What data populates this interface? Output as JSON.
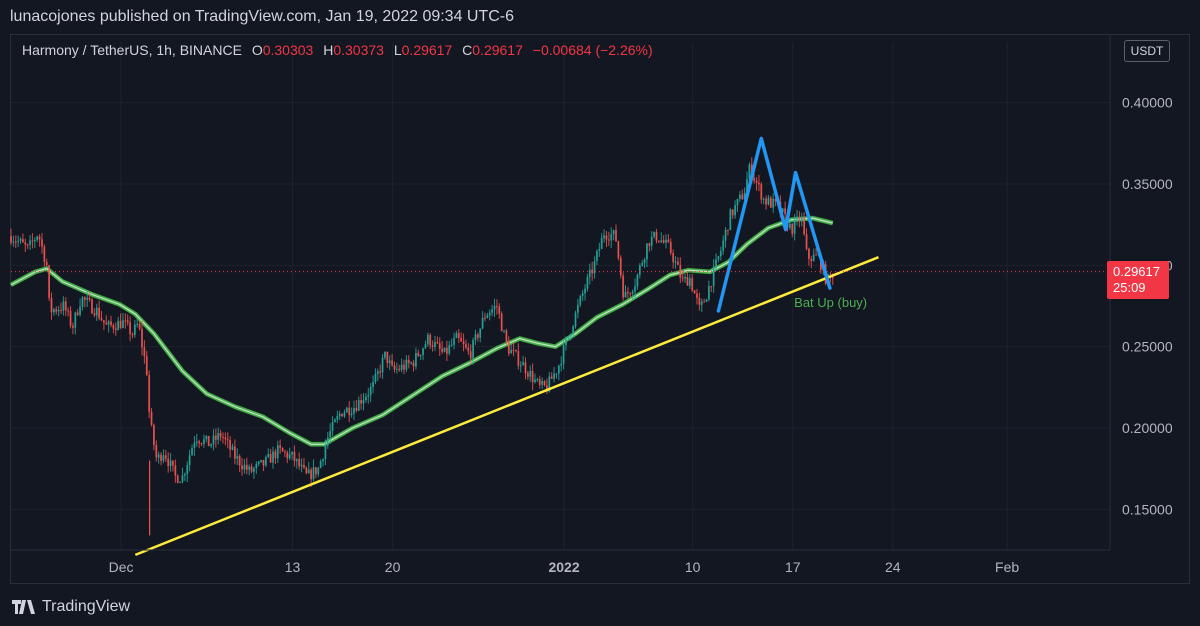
{
  "header": {
    "published": "lunacojones published on TradingView.com, Jan 19, 2022 09:34 UTC-6"
  },
  "legend": {
    "symbol": "Harmony / TetherUS, 1h, BINANCE",
    "o_label": "O",
    "o": "0.30303",
    "h_label": "H",
    "h": "0.30373",
    "l_label": "L",
    "l": "0.29617",
    "c_label": "C",
    "c": "0.29617",
    "change": "−0.00684 (−2.26%)"
  },
  "currency": "USDT",
  "price_tag": {
    "price": "0.29617",
    "countdown": "25:09"
  },
  "footer": {
    "brand": "TradingView"
  },
  "colors": {
    "background": "#131722",
    "bull": "#26a69a",
    "bear": "#ef5350",
    "ma": "#4caf50",
    "trendline": "#ffeb3b",
    "pattern": "#2196f3",
    "last_price": "#f23645"
  },
  "chart_data": {
    "type": "candlestick",
    "interval": "1h",
    "ylim": [
      0.125,
      0.425
    ],
    "yticks": [
      "0.15000",
      "0.20000",
      "0.25000",
      "0.30000",
      "0.35000",
      "0.40000"
    ],
    "xticks": [
      {
        "label": "Dec",
        "t": 1
      },
      {
        "label": "13",
        "t": 13
      },
      {
        "label": "20",
        "t": 20
      },
      {
        "label": "2022",
        "t": 32
      },
      {
        "label": "10",
        "t": 41
      },
      {
        "label": "17",
        "t": 48
      },
      {
        "label": "24",
        "t": 55
      },
      {
        "label": "Feb",
        "t": 63
      }
    ],
    "x_domain": [
      -6.7,
      70.2
    ],
    "price_path": [
      [
        -6.7,
        0.318
      ],
      [
        -5.5,
        0.31
      ],
      [
        -4.8,
        0.32
      ],
      [
        -4.2,
        0.3
      ],
      [
        -4.0,
        0.272
      ],
      [
        -3.0,
        0.275
      ],
      [
        -2.4,
        0.262
      ],
      [
        -1.8,
        0.28
      ],
      [
        -0.7,
        0.272
      ],
      [
        0.0,
        0.262
      ],
      [
        1.1,
        0.265
      ],
      [
        1.8,
        0.258
      ],
      [
        2.2,
        0.264
      ],
      [
        2.8,
        0.235
      ],
      [
        3.0,
        0.205
      ],
      [
        3.5,
        0.18
      ],
      [
        4.0,
        0.186
      ],
      [
        4.8,
        0.17
      ],
      [
        5.3,
        0.17
      ],
      [
        6.2,
        0.195
      ],
      [
        7.2,
        0.19
      ],
      [
        8.0,
        0.196
      ],
      [
        9.0,
        0.182
      ],
      [
        10.0,
        0.173
      ],
      [
        11.0,
        0.178
      ],
      [
        12.0,
        0.186
      ],
      [
        13.0,
        0.182
      ],
      [
        14.0,
        0.17
      ],
      [
        14.8,
        0.175
      ],
      [
        15.5,
        0.195
      ],
      [
        16.4,
        0.21
      ],
      [
        17.3,
        0.213
      ],
      [
        18.6,
        0.225
      ],
      [
        19.5,
        0.245
      ],
      [
        20.0,
        0.235
      ],
      [
        21.4,
        0.24
      ],
      [
        22.5,
        0.255
      ],
      [
        23.6,
        0.245
      ],
      [
        24.5,
        0.255
      ],
      [
        25.4,
        0.245
      ],
      [
        26.5,
        0.27
      ],
      [
        27.3,
        0.275
      ],
      [
        28.0,
        0.25
      ],
      [
        29.2,
        0.238
      ],
      [
        30.3,
        0.225
      ],
      [
        30.8,
        0.225
      ],
      [
        31.6,
        0.238
      ],
      [
        32.5,
        0.262
      ],
      [
        33.4,
        0.285
      ],
      [
        34.1,
        0.3
      ],
      [
        34.8,
        0.32
      ],
      [
        35.6,
        0.318
      ],
      [
        36.2,
        0.28
      ],
      [
        37.0,
        0.29
      ],
      [
        37.9,
        0.315
      ],
      [
        38.5,
        0.318
      ],
      [
        39.4,
        0.31
      ],
      [
        40.3,
        0.29
      ],
      [
        40.8,
        0.292
      ],
      [
        41.5,
        0.272
      ],
      [
        42.0,
        0.283
      ],
      [
        43.0,
        0.31
      ],
      [
        43.6,
        0.33
      ],
      [
        44.6,
        0.345
      ],
      [
        45.0,
        0.36
      ],
      [
        46.0,
        0.34
      ],
      [
        47.0,
        0.336
      ],
      [
        47.9,
        0.322
      ],
      [
        48.6,
        0.33
      ],
      [
        49.0,
        0.305
      ],
      [
        49.8,
        0.305
      ],
      [
        50.4,
        0.29
      ],
      [
        50.9,
        0.296
      ]
    ],
    "series": [
      {
        "name": "MA",
        "points": [
          [
            -6.7,
            0.288
          ],
          [
            -5.0,
            0.296
          ],
          [
            -4.2,
            0.298
          ],
          [
            -3.1,
            0.29
          ],
          [
            -1.0,
            0.282
          ],
          [
            0.9,
            0.276
          ],
          [
            2.0,
            0.27
          ],
          [
            3.3,
            0.258
          ],
          [
            5.3,
            0.235
          ],
          [
            7.0,
            0.221
          ],
          [
            9.0,
            0.213
          ],
          [
            10.9,
            0.207
          ],
          [
            12.8,
            0.197
          ],
          [
            14.3,
            0.19
          ],
          [
            15.2,
            0.19
          ],
          [
            17.2,
            0.2
          ],
          [
            19.3,
            0.208
          ],
          [
            21.4,
            0.22
          ],
          [
            23.5,
            0.232
          ],
          [
            25.4,
            0.24
          ],
          [
            27.3,
            0.249
          ],
          [
            28.9,
            0.255
          ],
          [
            30.2,
            0.252
          ],
          [
            31.4,
            0.25
          ],
          [
            32.8,
            0.258
          ],
          [
            34.3,
            0.268
          ],
          [
            36.1,
            0.276
          ],
          [
            37.8,
            0.285
          ],
          [
            39.4,
            0.294
          ],
          [
            40.7,
            0.297
          ],
          [
            42.2,
            0.296
          ],
          [
            43.5,
            0.302
          ],
          [
            44.8,
            0.313
          ],
          [
            46.3,
            0.323
          ],
          [
            47.9,
            0.328
          ],
          [
            49.4,
            0.329
          ],
          [
            50.8,
            0.326
          ]
        ]
      },
      {
        "name": "Bat Up (buy)",
        "points": [
          [
            42.8,
            0.272
          ],
          [
            45.8,
            0.378
          ],
          [
            47.5,
            0.322
          ],
          [
            48.2,
            0.357
          ],
          [
            50.6,
            0.286
          ]
        ]
      },
      {
        "name": "trendline",
        "points": [
          [
            2.0,
            0.122
          ],
          [
            54.0,
            0.305
          ]
        ]
      }
    ],
    "last_price": 0.29617,
    "annotations": [
      {
        "text": "Bat Up (buy)",
        "t": 48.1,
        "price": 0.2745
      }
    ]
  }
}
